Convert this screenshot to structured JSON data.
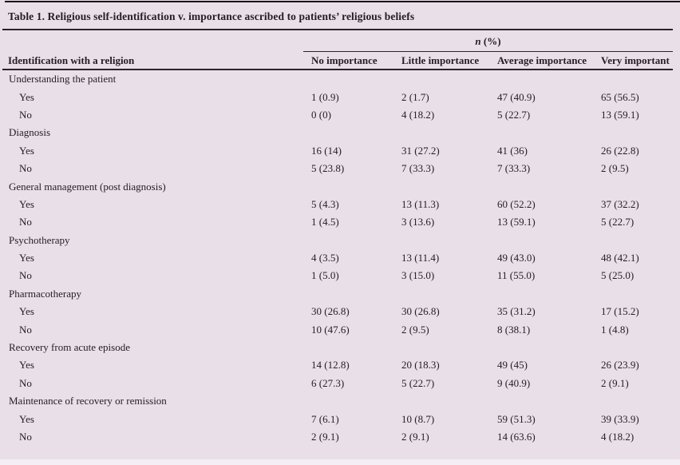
{
  "table": {
    "title": "Table 1. Religious self-identification v. importance ascribed to patients’ religious beliefs",
    "spanner": {
      "italic": "n",
      "rest": " (%)"
    },
    "stub_header": "Identification with a religion",
    "columns": [
      "No importance",
      "Little importance",
      "Average importance",
      "Very important"
    ],
    "rows": [
      {
        "type": "group",
        "label": "Understanding the patient"
      },
      {
        "type": "data",
        "label": "Yes",
        "values": [
          "1 (0.9)",
          "2 (1.7)",
          "47 (40.9)",
          "65 (56.5)"
        ]
      },
      {
        "type": "data",
        "label": "No",
        "values": [
          "0 (0)",
          "4 (18.2)",
          "5 (22.7)",
          "13 (59.1)"
        ]
      },
      {
        "type": "group",
        "label": "Diagnosis"
      },
      {
        "type": "data",
        "label": "Yes",
        "values": [
          "16 (14)",
          "31 (27.2)",
          "41 (36)",
          "26 (22.8)"
        ]
      },
      {
        "type": "data",
        "label": "No",
        "values": [
          "5 (23.8)",
          "7 (33.3)",
          "7 (33.3)",
          "2 (9.5)"
        ]
      },
      {
        "type": "group",
        "label": "General management (post diagnosis)"
      },
      {
        "type": "data",
        "label": "Yes",
        "values": [
          "5 (4.3)",
          "13 (11.3)",
          "60 (52.2)",
          "37 (32.2)"
        ]
      },
      {
        "type": "data",
        "label": "No",
        "values": [
          "1 (4.5)",
          "3 (13.6)",
          "13 (59.1)",
          "5 (22.7)"
        ]
      },
      {
        "type": "group",
        "label": "Psychotherapy"
      },
      {
        "type": "data",
        "label": "Yes",
        "values": [
          "4 (3.5)",
          "13 (11.4)",
          "49 (43.0)",
          "48 (42.1)"
        ]
      },
      {
        "type": "data",
        "label": "No",
        "values": [
          "1 (5.0)",
          "3 (15.0)",
          "11 (55.0)",
          "5 (25.0)"
        ]
      },
      {
        "type": "group",
        "label": "Pharmacotherapy"
      },
      {
        "type": "data",
        "label": "Yes",
        "values": [
          "30 (26.8)",
          "30 (26.8)",
          "35 (31.2)",
          "17 (15.2)"
        ]
      },
      {
        "type": "data",
        "label": "No",
        "values": [
          "10 (47.6)",
          "2 (9.5)",
          "8 (38.1)",
          "1 (4.8)"
        ]
      },
      {
        "type": "group",
        "label": "Recovery from acute episode"
      },
      {
        "type": "data",
        "label": "Yes",
        "values": [
          "14 (12.8)",
          "20 (18.3)",
          "49 (45)",
          "26 (23.9)"
        ]
      },
      {
        "type": "data",
        "label": "No",
        "values": [
          "6 (27.3)",
          "5 (22.7)",
          "9 (40.9)",
          "2 (9.1)"
        ]
      },
      {
        "type": "group",
        "label": "Maintenance of recovery or remission"
      },
      {
        "type": "data",
        "label": "Yes",
        "values": [
          "7 (6.1)",
          "10 (8.7)",
          "59 (51.3)",
          "39 (33.9)"
        ]
      },
      {
        "type": "data",
        "label": "No",
        "values": [
          "2 (9.1)",
          "2 (9.1)",
          "14 (63.6)",
          "4 (18.2)"
        ]
      }
    ]
  },
  "colors": {
    "table_background": "#e9dfe9",
    "page_background": "#f4eff4",
    "text": "#241c26",
    "rule": "#2a222c"
  }
}
